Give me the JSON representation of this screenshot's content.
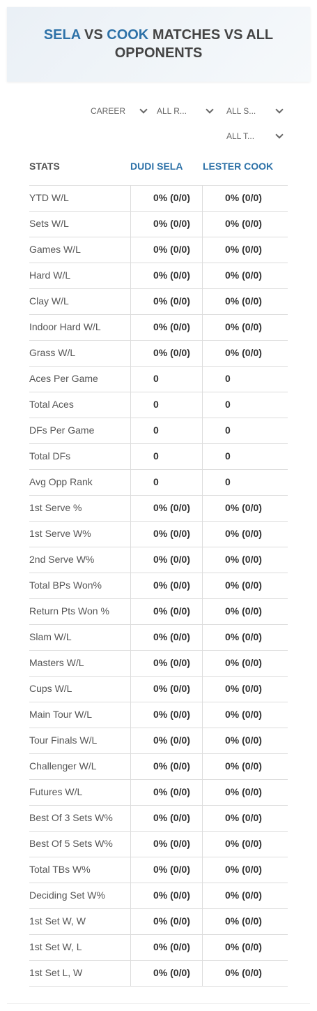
{
  "header": {
    "title": {
      "player1": "SELA",
      "vs": "VS",
      "player2": "COOK",
      "rest": "MATCHES VS ALL OPPONENTS"
    }
  },
  "filters": [
    "CAREER",
    "ALL R...",
    "ALL S...",
    "ALL T..."
  ],
  "table": {
    "columns": [
      "STATS",
      "DUDI SELA",
      "LESTER COOK"
    ],
    "rows": [
      [
        "YTD W/L",
        "0% (0/0)",
        "0% (0/0)"
      ],
      [
        "Sets W/L",
        "0% (0/0)",
        "0% (0/0)"
      ],
      [
        "Games W/L",
        "0% (0/0)",
        "0% (0/0)"
      ],
      [
        "Hard W/L",
        "0% (0/0)",
        "0% (0/0)"
      ],
      [
        "Clay W/L",
        "0% (0/0)",
        "0% (0/0)"
      ],
      [
        "Indoor Hard W/L",
        "0% (0/0)",
        "0% (0/0)"
      ],
      [
        "Grass W/L",
        "0% (0/0)",
        "0% (0/0)"
      ],
      [
        "Aces Per Game",
        "0",
        "0"
      ],
      [
        "Total Aces",
        "0",
        "0"
      ],
      [
        "DFs Per Game",
        "0",
        "0"
      ],
      [
        "Total DFs",
        "0",
        "0"
      ],
      [
        "Avg Opp Rank",
        "0",
        "0"
      ],
      [
        "1st Serve %",
        "0% (0/0)",
        "0% (0/0)"
      ],
      [
        "1st Serve W%",
        "0% (0/0)",
        "0% (0/0)"
      ],
      [
        "2nd Serve W%",
        "0% (0/0)",
        "0% (0/0)"
      ],
      [
        "Total BPs Won%",
        "0% (0/0)",
        "0% (0/0)"
      ],
      [
        "Return Pts Won %",
        "0% (0/0)",
        "0% (0/0)"
      ],
      [
        "Slam W/L",
        "0% (0/0)",
        "0% (0/0)"
      ],
      [
        "Masters W/L",
        "0% (0/0)",
        "0% (0/0)"
      ],
      [
        "Cups W/L",
        "0% (0/0)",
        "0% (0/0)"
      ],
      [
        "Main Tour W/L",
        "0% (0/0)",
        "0% (0/0)"
      ],
      [
        "Tour Finals W/L",
        "0% (0/0)",
        "0% (0/0)"
      ],
      [
        "Challenger W/L",
        "0% (0/0)",
        "0% (0/0)"
      ],
      [
        "Futures W/L",
        "0% (0/0)",
        "0% (0/0)"
      ],
      [
        "Best Of 3 Sets W%",
        "0% (0/0)",
        "0% (0/0)"
      ],
      [
        "Best Of 5 Sets W%",
        "0% (0/0)",
        "0% (0/0)"
      ],
      [
        "Total TBs W%",
        "0% (0/0)",
        "0% (0/0)"
      ],
      [
        "Deciding Set W%",
        "0% (0/0)",
        "0% (0/0)"
      ],
      [
        "1st Set W, W",
        "0% (0/0)",
        "0% (0/0)"
      ],
      [
        "1st Set W, L",
        "0% (0/0)",
        "0% (0/0)"
      ],
      [
        "1st Set L, W",
        "0% (0/0)",
        "0% (0/0)"
      ]
    ]
  }
}
